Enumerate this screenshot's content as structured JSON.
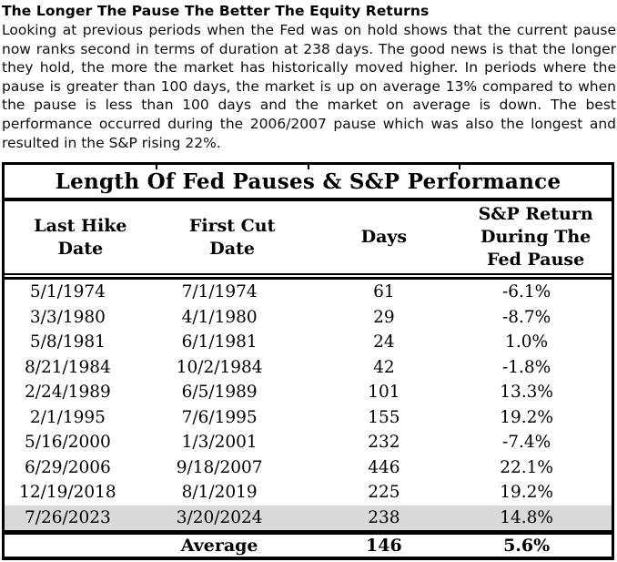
{
  "page": {
    "title": "The Longer The Pause The Better The Equity Returns",
    "intro": "Looking at previous periods when the Fed was on hold shows that the current pause now ranks second in terms of duration at 238 days. The good news is that the longer they hold, the more the market has historically moved higher. In periods where the pause is greater than 100 days, the market is up on average 13% compared to when the pause is less than 100 days and the market on average is down. The best performance occurred during the 2006/2007 pause which was also the longest and resulted in the S&P rising 22%."
  },
  "table": {
    "title": "Length Of Fed Pauses & S&P Performance",
    "columns": [
      "Last Hike\nDate",
      "First Cut\nDate",
      "Days",
      "S&P Return\nDuring The\nFed Pause"
    ],
    "rows": [
      {
        "last_hike": "5/1/1974",
        "first_cut": "7/1/1974",
        "days": "61",
        "sp_return": "-6.1%"
      },
      {
        "last_hike": "3/3/1980",
        "first_cut": "4/1/1980",
        "days": "29",
        "sp_return": "-8.7%"
      },
      {
        "last_hike": "5/8/1981",
        "first_cut": "6/1/1981",
        "days": "24",
        "sp_return": "1.0%"
      },
      {
        "last_hike": "8/21/1984",
        "first_cut": "10/2/1984",
        "days": "42",
        "sp_return": "-1.8%"
      },
      {
        "last_hike": "2/24/1989",
        "first_cut": "6/5/1989",
        "days": "101",
        "sp_return": "13.3%"
      },
      {
        "last_hike": "2/1/1995",
        "first_cut": "7/6/1995",
        "days": "155",
        "sp_return": "19.2%"
      },
      {
        "last_hike": "5/16/2000",
        "first_cut": "1/3/2001",
        "days": "232",
        "sp_return": "-7.4%"
      },
      {
        "last_hike": "6/29/2006",
        "first_cut": "9/18/2007",
        "days": "446",
        "sp_return": "22.1%"
      },
      {
        "last_hike": "12/19/2018",
        "first_cut": "8/1/2019",
        "days": "225",
        "sp_return": "19.2%"
      },
      {
        "last_hike": "7/26/2023",
        "first_cut": "3/20/2024",
        "days": "238",
        "sp_return": "14.8%"
      }
    ],
    "highlight_row_index": 9,
    "average": {
      "label": "Average",
      "days": "146",
      "sp_return": "5.6%"
    },
    "colors": {
      "highlight": "#d9d9d9",
      "border": "#000000",
      "text": "#000000"
    }
  },
  "chart_data": {
    "type": "table",
    "title": "Length Of Fed Pauses & S&P Performance",
    "categories": [
      "5/1/1974",
      "3/3/1980",
      "5/8/1981",
      "8/21/1984",
      "2/24/1989",
      "2/1/1995",
      "5/16/2000",
      "6/29/2006",
      "12/19/2018",
      "7/26/2023"
    ],
    "series": [
      {
        "name": "Days",
        "values": [
          61,
          29,
          24,
          42,
          101,
          155,
          232,
          446,
          225,
          238
        ]
      },
      {
        "name": "S&P Return During The Fed Pause (%)",
        "values": [
          -6.1,
          -8.7,
          1.0,
          -1.8,
          13.3,
          19.2,
          -7.4,
          22.1,
          19.2,
          14.8
        ]
      }
    ],
    "average": {
      "days": 146,
      "sp_return_pct": 5.6
    }
  }
}
